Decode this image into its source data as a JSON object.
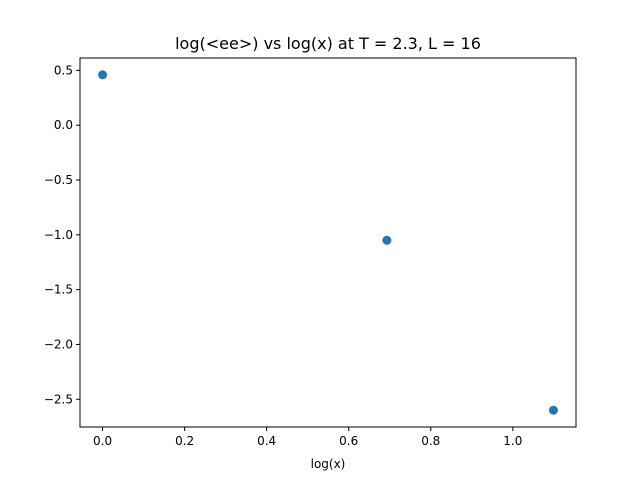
{
  "chart_data": {
    "type": "scatter",
    "title": "log(<ee>) vs log(x) at T = 2.3, L = 16",
    "xlabel": "log(x)",
    "ylabel": "",
    "xlim": [
      -0.055,
      1.154
    ],
    "ylim": [
      -2.753,
      0.613
    ],
    "xticks": [
      0.0,
      0.2,
      0.4,
      0.6,
      0.8,
      1.0
    ],
    "xtick_labels": [
      "0.0",
      "0.2",
      "0.4",
      "0.6",
      "0.8",
      "1.0"
    ],
    "yticks": [
      0.5,
      0.0,
      -0.5,
      -1.0,
      -1.5,
      -2.0,
      -2.5
    ],
    "ytick_labels": [
      "0.5",
      "0.0",
      "−0.5",
      "−1.0",
      "−1.5",
      "−2.0",
      "−2.5"
    ],
    "grid": false,
    "series": [
      {
        "color": "#1f77b4",
        "x": [
          0.0,
          0.693,
          1.099
        ],
        "y": [
          0.46,
          -1.05,
          -2.6
        ]
      }
    ]
  }
}
